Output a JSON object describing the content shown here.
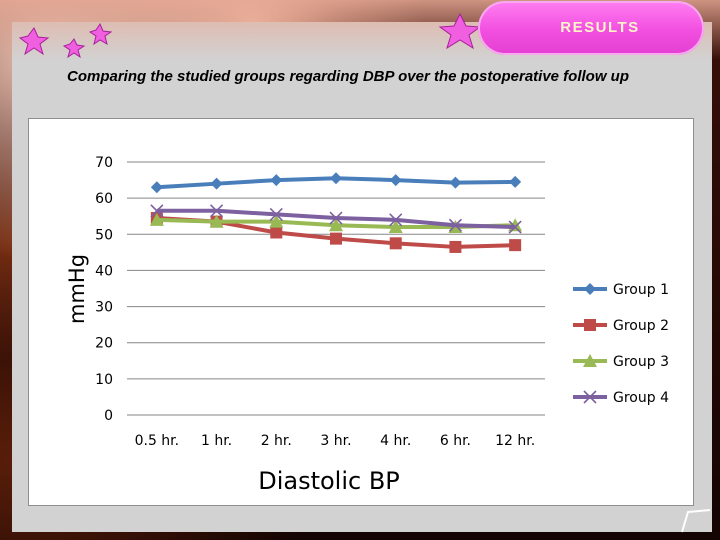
{
  "slide": {
    "section_title": "RESULTS",
    "subtitle": "Comparing the studied groups regarding DBP over the postoperative follow up"
  },
  "colors": {
    "pill": "#f24fe0",
    "slide_bg": "#d2d2d2",
    "series": [
      "#4a7ebb",
      "#be4b48",
      "#98b954",
      "#7d60a0"
    ]
  },
  "icons": [
    "star-icon",
    "page-corner-icon"
  ],
  "chart_data": {
    "type": "line",
    "title": "",
    "xlabel": "Diastolic BP",
    "ylabel": "mmHg",
    "categories": [
      "0.5 hr.",
      "1 hr.",
      "2 hr.",
      "3 hr.",
      "4 hr.",
      "6 hr.",
      "12 hr."
    ],
    "ylim": [
      0,
      70
    ],
    "yticks": [
      0,
      10,
      20,
      30,
      40,
      50,
      60,
      70
    ],
    "grid": true,
    "legend": "right",
    "series": [
      {
        "name": "Group 1",
        "marker": "diamond",
        "values": [
          63,
          64,
          65,
          65.5,
          65,
          64.3,
          64.5
        ]
      },
      {
        "name": "Group 2",
        "marker": "square",
        "values": [
          54.5,
          53.5,
          50.5,
          48.8,
          47.5,
          46.5,
          47
        ]
      },
      {
        "name": "Group 3",
        "marker": "triangle",
        "values": [
          54,
          53.5,
          53.5,
          52.5,
          52,
          52,
          52.5
        ]
      },
      {
        "name": "Group 4",
        "marker": "x",
        "values": [
          56.5,
          56.5,
          55.5,
          54.5,
          54,
          52.5,
          52
        ]
      }
    ]
  }
}
